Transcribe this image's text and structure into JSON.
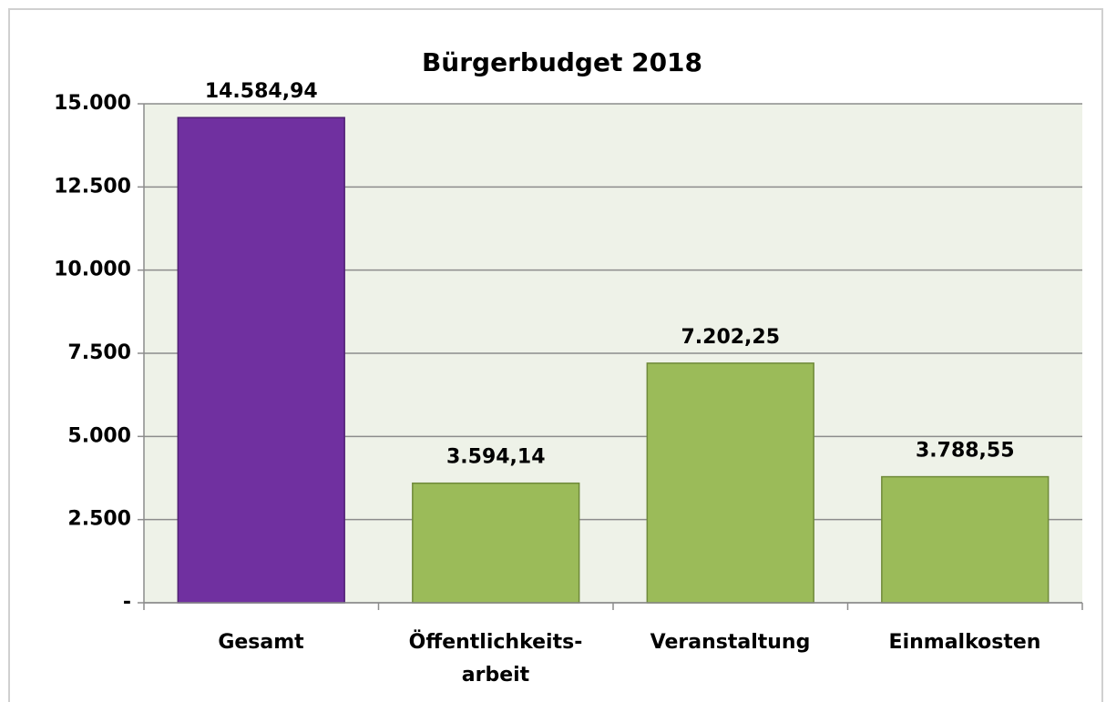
{
  "chart_data": {
    "type": "bar",
    "title": "Bürgerbudget 2018",
    "categories": [
      "Gesamt",
      "Öffentlichkeits-\narbeit",
      "Veranstaltung",
      "Einmalkosten"
    ],
    "values": [
      14584.94,
      3594.14,
      7202.25,
      3788.55
    ],
    "value_labels": [
      "14.584,94",
      "3.594,14",
      "7.202,25",
      "3.788,55"
    ],
    "colors": [
      "#7030a0",
      "#9bbb59",
      "#9bbb59",
      "#9bbb59"
    ],
    "ylim": [
      0,
      15000
    ],
    "yticks": [
      {
        "value": 0,
        "label": "-"
      },
      {
        "value": 2500,
        "label": "2.500"
      },
      {
        "value": 5000,
        "label": "5.000"
      },
      {
        "value": 7500,
        "label": "7.500"
      },
      {
        "value": 10000,
        "label": "10.000"
      },
      {
        "value": 12500,
        "label": "12.500"
      },
      {
        "value": 15000,
        "label": "15.000"
      }
    ],
    "grid": true
  }
}
